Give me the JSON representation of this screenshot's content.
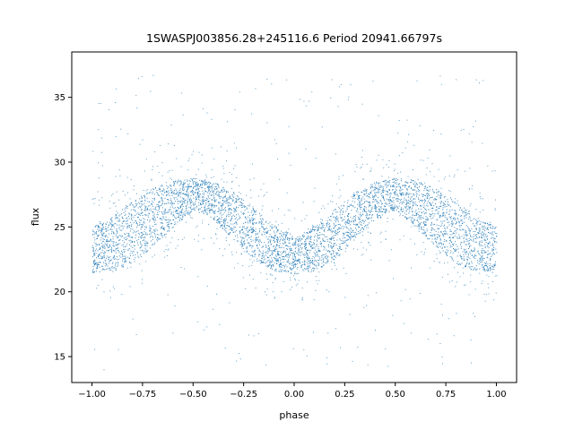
{
  "chart_data": {
    "type": "scatter",
    "title": "1SWASPJ003856.28+245116.6 Period 20941.66797s",
    "xlabel": "phase",
    "ylabel": "flux",
    "xlim": [
      -1.1,
      1.1
    ],
    "ylim": [
      13.0,
      38.5
    ],
    "xticks": [
      -1.0,
      -0.75,
      -0.5,
      -0.25,
      0.0,
      0.25,
      0.5,
      0.75,
      1.0
    ],
    "xtick_labels": [
      "−1.00",
      "−0.75",
      "−0.50",
      "−0.25",
      "0.00",
      "0.25",
      "0.50",
      "0.75",
      "1.00"
    ],
    "yticks": [
      15,
      20,
      25,
      30,
      35
    ],
    "ytick_labels": [
      "15",
      "20",
      "25",
      "30",
      "35"
    ],
    "grid": false,
    "legend": "none",
    "point_color": "#1f77b4",
    "series": [
      {
        "name": "",
        "x": [
          -1.0,
          -0.9,
          -0.8,
          -0.7,
          -0.6,
          -0.5,
          -0.4,
          -0.3,
          -0.2,
          -0.1,
          0.0,
          0.1,
          0.2,
          0.3,
          0.4,
          0.5,
          0.6,
          0.7,
          0.8,
          0.9,
          1.0
        ],
        "y_upper": [
          25.0,
          25.8,
          27.0,
          28.0,
          28.6,
          28.8,
          28.5,
          27.7,
          26.4,
          25.2,
          24.3,
          25.2,
          26.4,
          27.7,
          28.5,
          28.8,
          28.6,
          28.0,
          27.0,
          25.8,
          25.0
        ],
        "y_lower": [
          21.5,
          21.6,
          22.2,
          23.5,
          25.0,
          26.3,
          25.6,
          24.0,
          22.5,
          21.6,
          21.4,
          21.6,
          22.5,
          24.0,
          25.6,
          26.3,
          25.0,
          23.5,
          22.2,
          21.6,
          21.5
        ],
        "outlier_range": [
          14.0,
          37.0
        ]
      }
    ]
  }
}
